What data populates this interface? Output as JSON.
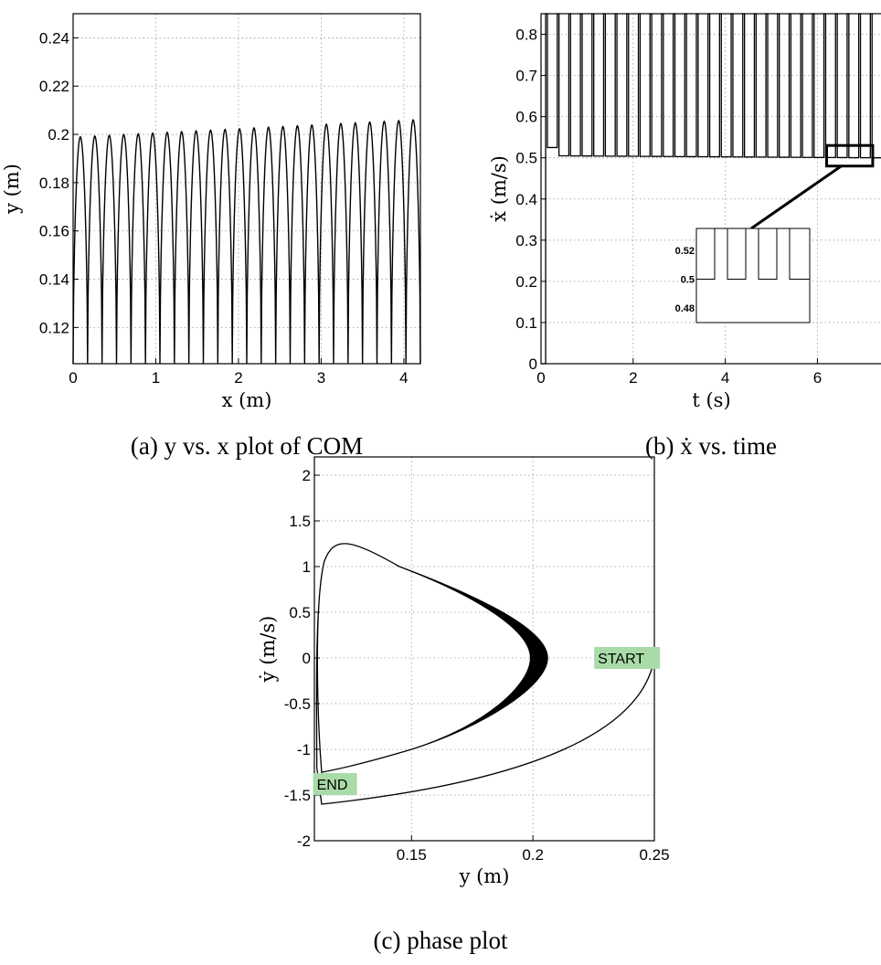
{
  "chart_data": [
    {
      "type": "line",
      "id": "a",
      "caption": "(a) y vs. x plot of COM",
      "xlabel": "x (m)",
      "ylabel": "y (m)",
      "xlim": [
        0,
        4.2
      ],
      "ylim": [
        0.105,
        0.25
      ],
      "xticks": [
        0,
        1,
        2,
        3,
        4
      ],
      "yticks": [
        0.12,
        0.14,
        0.16,
        0.18,
        0.2,
        0.22,
        0.24
      ],
      "grid": true,
      "series": [
        {
          "style": "periodic-hops",
          "x_start": 0.0,
          "x_end": 4.2,
          "hop_count": 24,
          "baseline": 0.105,
          "peak_first": 0.199,
          "peak_last": 0.206
        }
      ]
    },
    {
      "type": "line",
      "id": "b",
      "caption": "(b) ẋ vs. time",
      "xlabel": "t (s)",
      "ylabel": "ẋ (m/s)",
      "xlim": [
        0,
        7.4
      ],
      "ylim": [
        0,
        0.85
      ],
      "xticks": [
        0,
        2,
        4,
        6
      ],
      "yticks": [
        0,
        0.1,
        0.2,
        0.3,
        0.4,
        0.5,
        0.6,
        0.7,
        0.8
      ],
      "grid": true,
      "series": [
        {
          "style": "square-pulses",
          "t_start": 0.1,
          "t_end": 7.4,
          "pulse_count": 29,
          "low_first": 0.525,
          "low_level": 0.505,
          "low_last": 0.5,
          "high": 0.85
        }
      ],
      "inset": {
        "yticks": [
          "0.52",
          "0.5",
          "0.48"
        ],
        "zoom_window": {
          "t": [
            6.2,
            7.2
          ],
          "y": [
            0.48,
            0.53
          ]
        }
      }
    },
    {
      "type": "line",
      "id": "c",
      "caption": "(c) phase plot",
      "xlabel": "y (m)",
      "ylabel": "ẏ (m/s)",
      "xlim": [
        0.11,
        0.25
      ],
      "ylim": [
        -2,
        2.2
      ],
      "xticks": [
        0.15,
        0.2,
        0.25
      ],
      "yticks": [
        -2,
        -1.5,
        -1,
        -0.5,
        0,
        0.5,
        1,
        1.5,
        2
      ],
      "grid": true,
      "series": [
        {
          "style": "limit-cycle",
          "start": [
            0.25,
            0
          ],
          "end": [
            0.113,
            -1.35
          ],
          "cycle_left_y": 0.112,
          "cycle_right_y_range": [
            0.199,
            0.206
          ],
          "cycle_vy_top": 1.3,
          "cycle_vy_bottom": -1.25
        }
      ],
      "annotations": [
        {
          "text": "START",
          "at": [
            0.235,
            0
          ]
        },
        {
          "text": "END",
          "at": [
            0.117,
            -1.38
          ]
        }
      ]
    }
  ]
}
